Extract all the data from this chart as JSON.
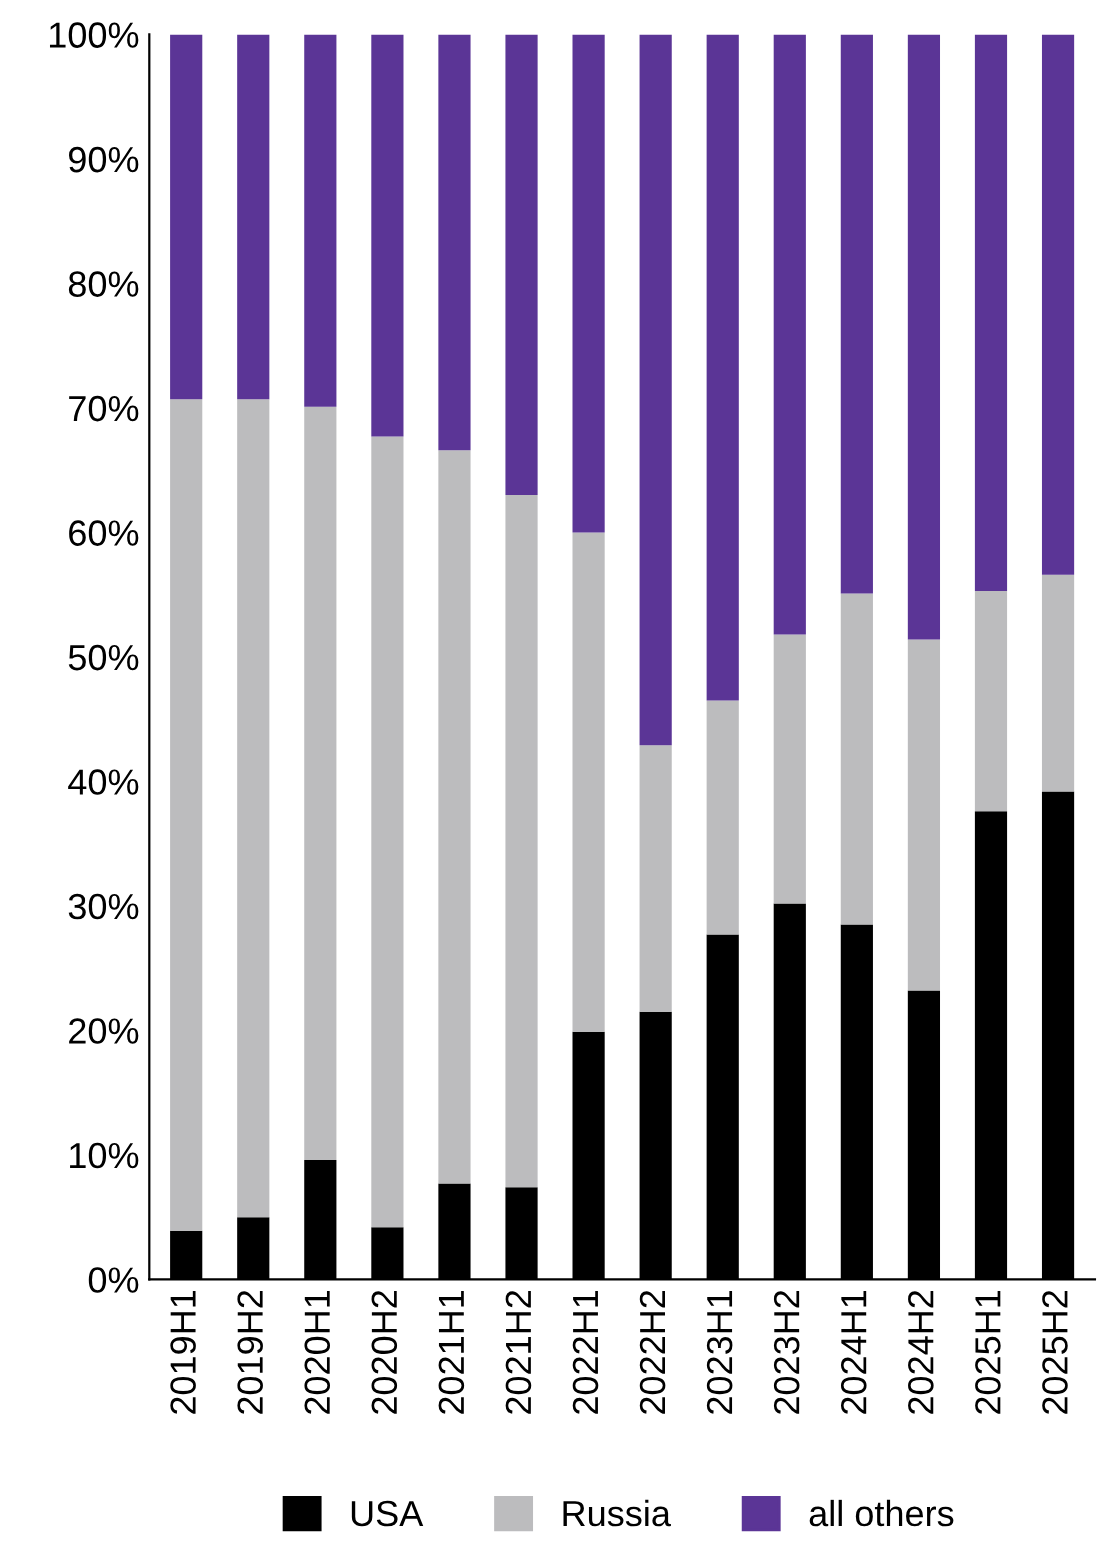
{
  "chart_data": {
    "type": "bar",
    "stacked": true,
    "categories": [
      "2019H1",
      "2019H2",
      "2020H1",
      "2020H2",
      "2021H1",
      "2021H2",
      "2022H1",
      "2022H2",
      "2023H1",
      "2023H2",
      "2024H1",
      "2024H2",
      "2025H1",
      "2025H2"
    ],
    "series": [
      {
        "name": "USA",
        "color": "#000000",
        "values": [
          3.9,
          5,
          9.6,
          4.2,
          7.7,
          7.4,
          19.9,
          21.5,
          27.7,
          30.2,
          28.5,
          23.2,
          37.6,
          39.2
        ]
      },
      {
        "name": "Russia",
        "color": "#bcbcbe",
        "values": [
          66.8,
          65.7,
          60.5,
          63.5,
          58.9,
          55.6,
          40.1,
          21.4,
          18.8,
          21.6,
          26.6,
          28.2,
          17.7,
          17.4
        ]
      },
      {
        "name": "all others",
        "color": "#5b3596",
        "values": [
          29.3,
          29.3,
          29.9,
          32.3,
          33.4,
          37,
          40,
          57.1,
          53.5,
          48.2,
          44.9,
          48.6,
          44.7,
          43.4
        ]
      }
    ],
    "ylim": [
      0,
      100
    ],
    "yticks": [
      {
        "value": 0,
        "label": "0%"
      },
      {
        "value": 10,
        "label": "10%"
      },
      {
        "value": 20,
        "label": "20%"
      },
      {
        "value": 30,
        "label": "30%"
      },
      {
        "value": 40,
        "label": "40%"
      },
      {
        "value": 50,
        "label": "50%"
      },
      {
        "value": 60,
        "label": "60%"
      },
      {
        "value": 70,
        "label": "70%"
      },
      {
        "value": 80,
        "label": "80%"
      },
      {
        "value": 90,
        "label": "90%"
      },
      {
        "value": 100,
        "label": "100%"
      }
    ],
    "grid": false,
    "legend": "bottom"
  }
}
